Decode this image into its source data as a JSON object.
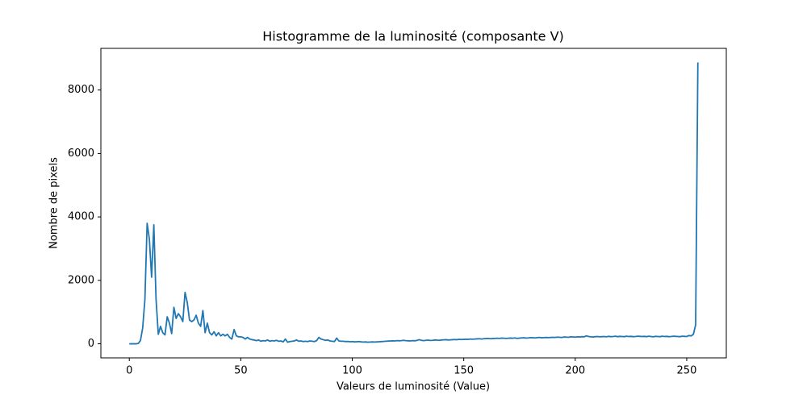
{
  "chart_data": {
    "type": "line",
    "title": "Histogramme de la luminosité (composante V)",
    "x_label": "Valeurs de luminosité (Value)",
    "y_label": "Nombre de pixels",
    "color": "#1f77b4",
    "x": [
      0,
      1,
      2,
      3,
      4,
      5,
      6,
      7,
      8,
      9,
      10,
      11,
      12,
      13,
      14,
      15,
      16,
      17,
      18,
      19,
      20,
      21,
      22,
      23,
      24,
      25,
      26,
      27,
      28,
      29,
      30,
      31,
      32,
      33,
      34,
      35,
      36,
      37,
      38,
      39,
      40,
      41,
      42,
      43,
      44,
      45,
      46,
      47,
      48,
      49,
      50,
      51,
      52,
      53,
      54,
      55,
      56,
      57,
      58,
      59,
      60,
      61,
      62,
      63,
      64,
      65,
      66,
      67,
      68,
      69,
      70,
      71,
      72,
      73,
      74,
      75,
      76,
      77,
      78,
      79,
      80,
      81,
      82,
      83,
      84,
      85,
      86,
      87,
      88,
      89,
      90,
      91,
      92,
      93,
      94,
      95,
      96,
      97,
      98,
      99,
      100,
      101,
      102,
      103,
      104,
      105,
      106,
      107,
      108,
      109,
      110,
      111,
      112,
      113,
      114,
      115,
      116,
      117,
      118,
      119,
      120,
      121,
      122,
      123,
      124,
      125,
      126,
      127,
      128,
      129,
      130,
      131,
      132,
      133,
      134,
      135,
      136,
      137,
      138,
      139,
      140,
      141,
      142,
      143,
      144,
      145,
      146,
      147,
      148,
      149,
      150,
      151,
      152,
      153,
      154,
      155,
      156,
      157,
      158,
      159,
      160,
      161,
      162,
      163,
      164,
      165,
      166,
      167,
      168,
      169,
      170,
      171,
      172,
      173,
      174,
      175,
      176,
      177,
      178,
      179,
      180,
      181,
      182,
      183,
      184,
      185,
      186,
      187,
      188,
      189,
      190,
      191,
      192,
      193,
      194,
      195,
      196,
      197,
      198,
      199,
      200,
      201,
      202,
      203,
      204,
      205,
      206,
      207,
      208,
      209,
      210,
      211,
      212,
      213,
      214,
      215,
      216,
      217,
      218,
      219,
      220,
      221,
      222,
      223,
      224,
      225,
      226,
      227,
      228,
      229,
      230,
      231,
      232,
      233,
      234,
      235,
      236,
      237,
      238,
      239,
      240,
      241,
      242,
      243,
      244,
      245,
      246,
      247,
      248,
      249,
      250,
      251,
      252,
      253,
      254,
      255
    ],
    "values": [
      0,
      0,
      0,
      0,
      10,
      100,
      500,
      1400,
      3800,
      3300,
      2100,
      3750,
      1400,
      300,
      550,
      350,
      280,
      850,
      650,
      320,
      1150,
      800,
      950,
      850,
      700,
      1620,
      1300,
      750,
      700,
      750,
      900,
      650,
      550,
      1050,
      350,
      650,
      350,
      280,
      380,
      250,
      350,
      250,
      300,
      250,
      300,
      200,
      150,
      450,
      250,
      220,
      220,
      200,
      150,
      200,
      150,
      130,
      120,
      100,
      120,
      80,
      100,
      90,
      120,
      80,
      100,
      90,
      110,
      80,
      90,
      60,
      150,
      50,
      70,
      80,
      90,
      120,
      80,
      90,
      70,
      80,
      70,
      90,
      80,
      70,
      100,
      200,
      150,
      130,
      110,
      120,
      90,
      80,
      70,
      180,
      90,
      80,
      80,
      70,
      75,
      65,
      70,
      60,
      65,
      70,
      60,
      55,
      60,
      50,
      55,
      60,
      55,
      60,
      65,
      70,
      75,
      80,
      85,
      90,
      95,
      90,
      100,
      95,
      100,
      110,
      100,
      95,
      90,
      100,
      95,
      105,
      130,
      110,
      100,
      110,
      115,
      105,
      110,
      120,
      115,
      110,
      120,
      125,
      130,
      120,
      125,
      130,
      135,
      130,
      140,
      135,
      140,
      145,
      140,
      150,
      145,
      150,
      155,
      160,
      150,
      160,
      165,
      170,
      160,
      165,
      170,
      175,
      170,
      180,
      175,
      170,
      175,
      180,
      175,
      185,
      170,
      180,
      185,
      190,
      180,
      185,
      195,
      190,
      185,
      195,
      200,
      190,
      195,
      200,
      195,
      200,
      205,
      200,
      210,
      205,
      200,
      215,
      210,
      205,
      220,
      215,
      210,
      220,
      215,
      225,
      220,
      250,
      230,
      220,
      215,
      225,
      230,
      220,
      225,
      230,
      220,
      235,
      225,
      230,
      240,
      225,
      235,
      230,
      225,
      240,
      230,
      235,
      225,
      230,
      240,
      235,
      230,
      235,
      225,
      240,
      230,
      220,
      235,
      230,
      225,
      240,
      230,
      235,
      225,
      230,
      240,
      235,
      230,
      225,
      240,
      235,
      230,
      260,
      250,
      300,
      600,
      8870
    ],
    "xlim": [
      -12.75,
      267.75
    ],
    "ylim": [
      -443.5,
      9313.5
    ],
    "xticks": [
      0,
      50,
      100,
      150,
      200,
      250
    ],
    "yticks": [
      0,
      2000,
      4000,
      6000,
      8000
    ]
  }
}
